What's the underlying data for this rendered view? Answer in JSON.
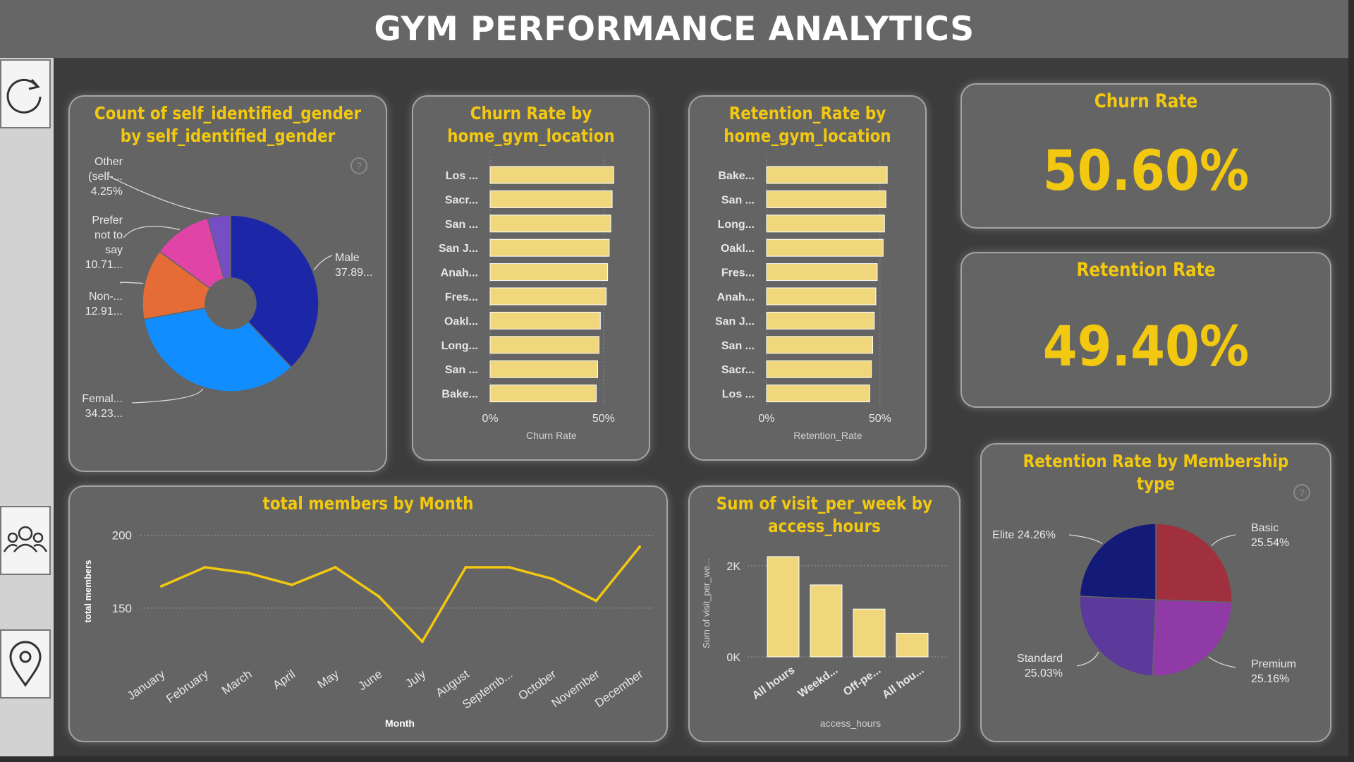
{
  "header": {
    "title": "GYM PERFORMANCE ANALYTICS"
  },
  "sidebar": {
    "buttons": [
      {
        "icon": "refresh-icon"
      },
      {
        "icon": "people-icon"
      },
      {
        "icon": "location-pin-icon"
      }
    ]
  },
  "colors": {
    "accent": "#f2c811",
    "bar": "#f0d77c",
    "card": "#646464",
    "background": "#3c3c3c"
  },
  "gender_card": {
    "title_line1": "Count of self_identified_gender",
    "title_line2": "by self_identified_gender"
  },
  "churn_loc_card": {
    "title_line1": "Churn Rate by",
    "title_line2": "home_gym_location"
  },
  "retention_loc_card": {
    "title_line1": "Retention_Rate by",
    "title_line2": "home_gym_location"
  },
  "kpis": {
    "churn": {
      "label": "Churn Rate",
      "value": "50.60%"
    },
    "retention": {
      "label": "Retention Rate",
      "value": "49.40%"
    }
  },
  "members_card": {
    "title": "total members by Month"
  },
  "visits_card": {
    "title_line1": "Sum of visit_per_week by",
    "title_line2": "access_hours"
  },
  "membership_card": {
    "title": "Retention Rate by Membership type"
  },
  "chart_data": [
    {
      "id": "gender",
      "type": "pie",
      "title": "Count of self_identified_gender by self_identified_gender",
      "slices": [
        {
          "name": "Male",
          "label": [
            "Male",
            "37.89..."
          ],
          "value": 37.89,
          "color": "#1c27a8"
        },
        {
          "name": "Female",
          "label": [
            "Femal...",
            "34.23..."
          ],
          "value": 34.23,
          "color": "#118dff"
        },
        {
          "name": "Non-binary",
          "label": [
            "Non-...",
            "12.91..."
          ],
          "value": 12.91,
          "color": "#e66c37"
        },
        {
          "name": "Prefer not to say",
          "label": [
            "Prefer",
            "not to",
            "say",
            "10.71..."
          ],
          "value": 10.71,
          "color": "#e044a7"
        },
        {
          "name": "Other (self-...)",
          "label": [
            "Other",
            "(self-...",
            "4.25%"
          ],
          "value": 4.25,
          "color": "#744ec2"
        }
      ]
    },
    {
      "id": "churn_location",
      "type": "bar",
      "orientation": "horizontal",
      "title": "Churn Rate by home_gym_location",
      "categories": [
        "Los ...",
        "Sacr...",
        "San ...",
        "San J...",
        "Anah...",
        "Fres...",
        "Oakl...",
        "Long...",
        "San ...",
        "Bake..."
      ],
      "values": [
        0.545,
        0.538,
        0.532,
        0.525,
        0.518,
        0.512,
        0.486,
        0.48,
        0.474,
        0.468
      ],
      "xlabel": "Churn Rate",
      "xticks": [
        "0%",
        "50%"
      ],
      "xlim": [
        0,
        0.6
      ]
    },
    {
      "id": "retention_location",
      "type": "bar",
      "orientation": "horizontal",
      "title": "Retention_Rate by home_gym_location",
      "categories": [
        "Bake...",
        "San ...",
        "Long...",
        "Oakl...",
        "Fres...",
        "Anah...",
        "San J...",
        "San ...",
        "Sacr...",
        "Los ..."
      ],
      "values": [
        0.532,
        0.526,
        0.52,
        0.514,
        0.488,
        0.482,
        0.475,
        0.468,
        0.462,
        0.455
      ],
      "xlabel": "Retention_Rate",
      "xticks": [
        "0%",
        "50%"
      ],
      "xlim": [
        0,
        0.6
      ]
    },
    {
      "id": "members_month",
      "type": "line",
      "title": "total members by Month",
      "categories": [
        "January",
        "February",
        "March",
        "April",
        "May",
        "June",
        "July",
        "August",
        "Septemb...",
        "October",
        "November",
        "December"
      ],
      "values": [
        165,
        178,
        174,
        166,
        178,
        158,
        127,
        178,
        178,
        170,
        155,
        192
      ],
      "xlabel": "Month",
      "ylabel": "total members",
      "yticks": [
        "150",
        "200"
      ],
      "ylim": [
        118,
        209
      ],
      "color": "#f2c811"
    },
    {
      "id": "visits_access",
      "type": "bar",
      "title": "Sum of visit_per_week by access_hours",
      "categories": [
        "All hours",
        "Weekd...",
        "Off-pe...",
        "All hou..."
      ],
      "values": [
        2200,
        1580,
        1050,
        520
      ],
      "xlabel": "access_hours",
      "ylabel": "Sum of visit_per_we...",
      "yticks": [
        "0K",
        "2K"
      ],
      "ylim": [
        0,
        2400
      ]
    },
    {
      "id": "membership",
      "type": "pie",
      "title": "Retention Rate by Membership type",
      "slices": [
        {
          "name": "Basic",
          "label": [
            "Basic",
            "25.54%"
          ],
          "value": 25.54,
          "color": "#a0303e"
        },
        {
          "name": "Premium",
          "label": [
            "Premium",
            "25.16%"
          ],
          "value": 25.16,
          "color": "#8f3aa6"
        },
        {
          "name": "Standard",
          "label": [
            "Standard",
            "25.03%"
          ],
          "value": 25.03,
          "color": "#5b3a9c"
        },
        {
          "name": "Elite",
          "label": [
            "Elite 24.26%"
          ],
          "value": 24.26,
          "color": "#131a78"
        }
      ]
    }
  ]
}
